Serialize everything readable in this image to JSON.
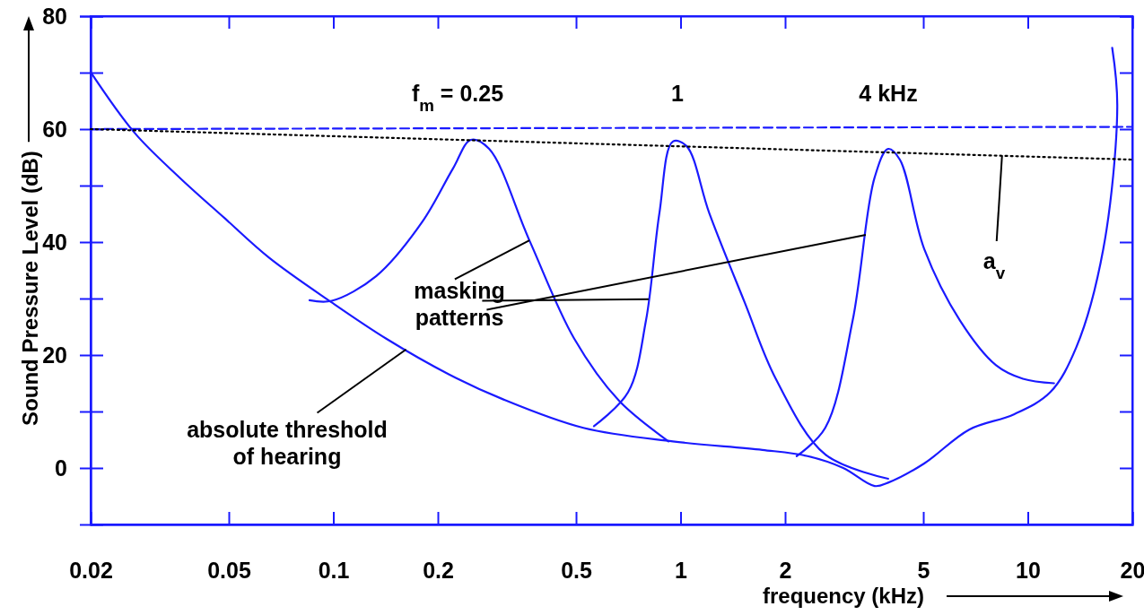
{
  "chart_data": {
    "type": "line",
    "xlabel": "frequency (kHz)",
    "ylabel": "Sound Pressure Level (dB)",
    "log": "x",
    "xlim": [
      0.02,
      20
    ],
    "xticks": [
      0.02,
      0.05,
      0.1,
      0.2,
      0.5,
      1,
      2,
      5,
      10,
      20
    ],
    "ylim": [
      -10,
      80
    ],
    "yticks": [
      0,
      {
        "value": 10,
        "label": null
      },
      20,
      {
        "value": 30,
        "label": null
      },
      40,
      {
        "value": 50,
        "label": null
      },
      60,
      {
        "value": 70,
        "label": null
      },
      80
    ],
    "grid": false,
    "marker": "none",
    "series": [
      {
        "color": "#1a1aff",
        "x": [
          0.02,
          0.0268,
          0.0361,
          0.0485,
          0.0654,
          0.099,
          0.142,
          0.215,
          0.307,
          0.525,
          0.95,
          1.72,
          2.32,
          2.94,
          3.62,
          3.96,
          5.03,
          6.78,
          9.12,
          11.6,
          13.8,
          16.5,
          18.1,
          17.5
        ],
        "values": [
          70.1,
          59.3,
          51.4,
          44.3,
          37.2,
          29.3,
          22.9,
          16.6,
          12.2,
          7.1,
          4.7,
          3.2,
          2.1,
          0,
          -3.2,
          -2.6,
          0.8,
          6.8,
          9.5,
          13.4,
          21.4,
          38.8,
          64,
          74.4
        ]
      },
      {
        "color": "#1a1aff",
        "x": [
          0.0854,
          0.099,
          0.133,
          0.18,
          0.221,
          0.249,
          0.281,
          0.367,
          0.494,
          0.665,
          0.923
        ],
        "values": [
          29.7,
          29.6,
          34,
          43.5,
          53,
          58.1,
          56.5,
          40.3,
          22.9,
          11.9,
          4.7
        ]
      },
      {
        "color": "#1a1aff",
        "x": [
          0.563,
          0.706,
          0.795,
          0.869,
          0.95,
          1.04,
          1.21,
          1.53,
          1.88,
          2.61,
          3.96
        ],
        "values": [
          7.4,
          13.4,
          26.1,
          45.1,
          57.8,
          57,
          45.1,
          29.3,
          15.8,
          2.4,
          -1.9
        ]
      },
      {
        "color": "#1a1aff",
        "x": [
          2.16,
          2.61,
          3.13,
          3.62,
          3.96,
          4.28,
          5.03,
          6.38,
          8.1,
          9.68,
          11.9
        ],
        "values": [
          2.1,
          7.1,
          26.1,
          51.4,
          56.5,
          54.6,
          38.8,
          26.1,
          18.2,
          15.8,
          15
        ]
      },
      {
        "color": "#1a1aff",
        "line_style": "dashed",
        "x": [
          0.02,
          20
        ],
        "values": [
          60,
          60.4
        ]
      },
      {
        "color": "#000000",
        "line_style": "dotted",
        "x": [
          0.02,
          20
        ],
        "values": [
          60,
          54.6
        ]
      }
    ],
    "annotations": [
      "f$_{m}$ = 0.25",
      "1",
      "4 kHz",
      {
        "text": "masking patterns",
        "x": 0.367,
        "y": 40.3
      },
      {
        "text": "absolute threshold of hearing",
        "x": 0.162,
        "y": 21
      },
      {
        "text": "a$_{v}$",
        "x": 8.43,
        "y": 55.3
      }
    ]
  }
}
